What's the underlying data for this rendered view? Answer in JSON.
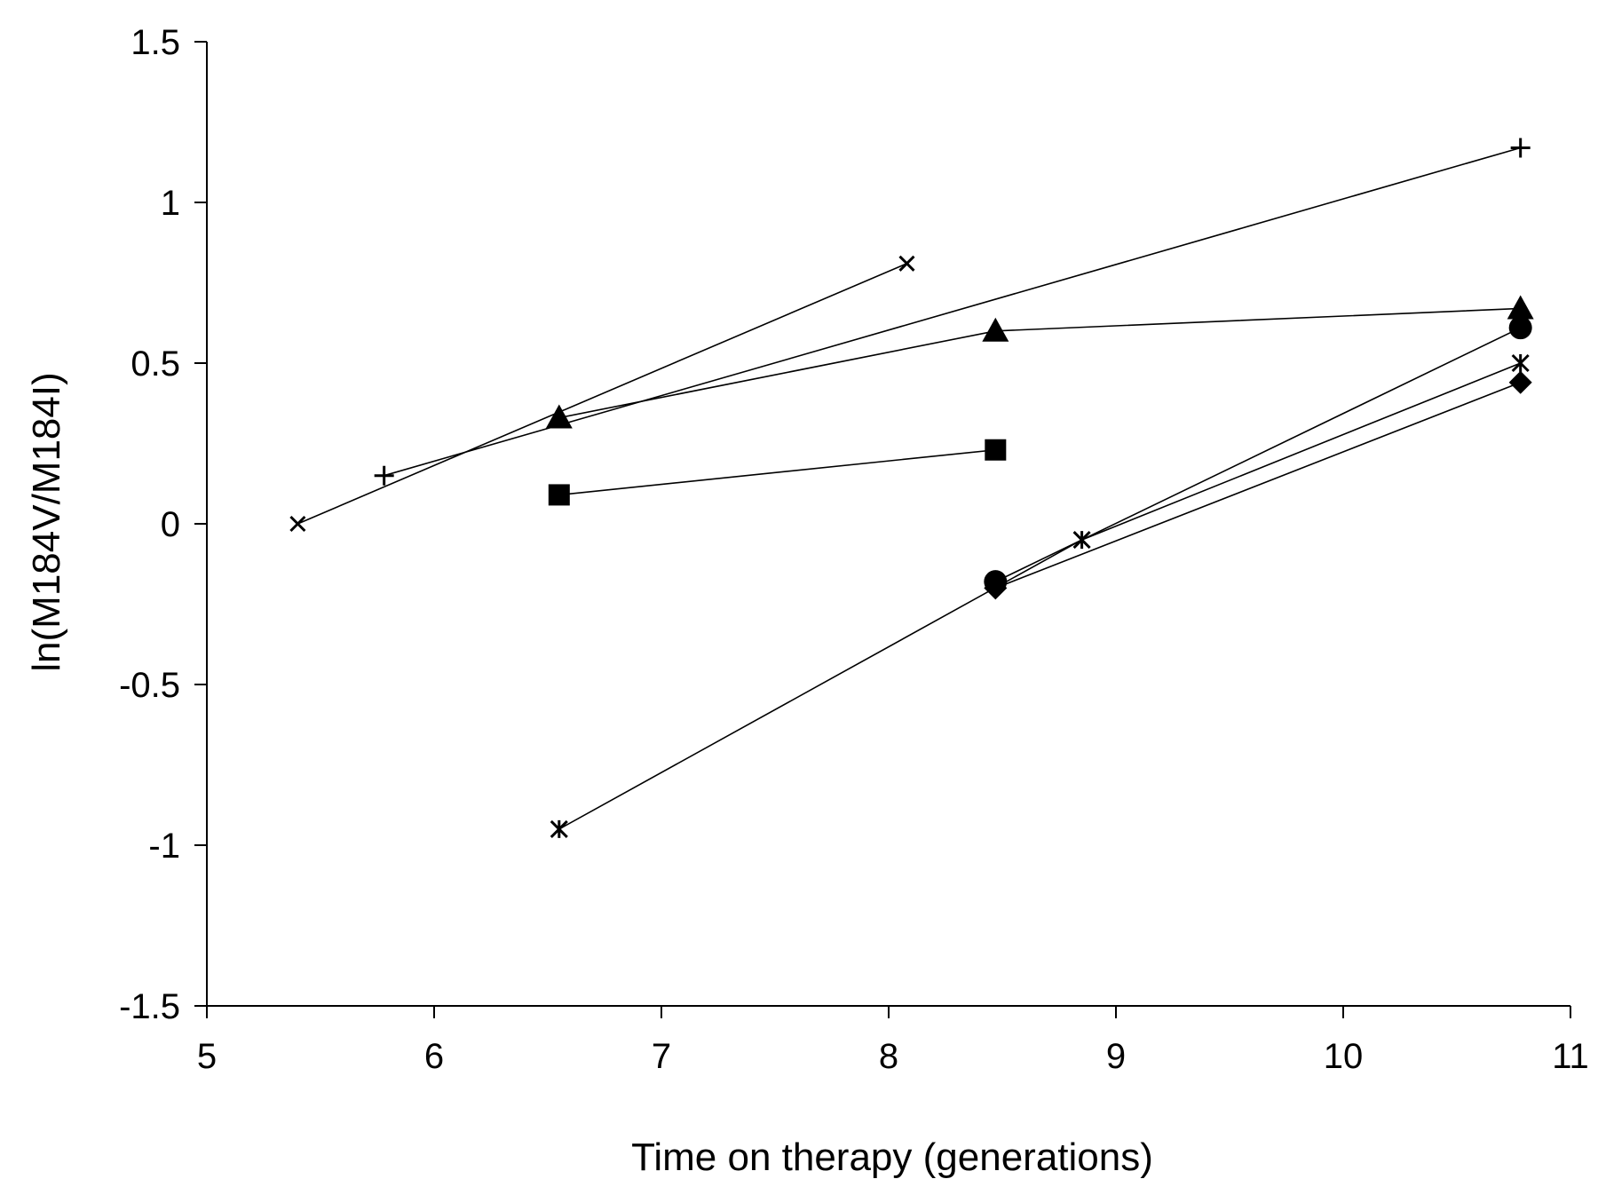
{
  "chart_data": {
    "type": "line",
    "title": "",
    "xlabel": "Time on therapy (generations)",
    "ylabel": "ln(M184V/M184I)",
    "xlim": [
      5,
      11
    ],
    "ylim": [
      -1.5,
      1.5
    ],
    "xticks": [
      5,
      6,
      7,
      8,
      9,
      10,
      11
    ],
    "yticks": [
      1.5,
      1,
      0.5,
      0,
      -0.5,
      -1,
      -1.5
    ],
    "grid": false,
    "legend": "none",
    "series": [
      {
        "marker": "x",
        "points": [
          [
            5.4,
            0.0
          ],
          [
            8.08,
            0.81
          ]
        ]
      },
      {
        "marker": "plus",
        "points": [
          [
            5.78,
            0.15
          ],
          [
            10.78,
            1.17
          ]
        ]
      },
      {
        "marker": "triangle",
        "points": [
          [
            6.55,
            0.33
          ],
          [
            8.47,
            0.6
          ],
          [
            10.78,
            0.67
          ]
        ]
      },
      {
        "marker": "square",
        "points": [
          [
            6.55,
            0.09
          ],
          [
            8.47,
            0.23
          ]
        ]
      },
      {
        "marker": "asterisk",
        "points": [
          [
            6.55,
            -0.95
          ],
          [
            8.85,
            -0.05
          ],
          [
            10.78,
            0.5
          ]
        ]
      },
      {
        "marker": "circle",
        "points": [
          [
            8.47,
            -0.18
          ],
          [
            10.78,
            0.61
          ]
        ]
      },
      {
        "marker": "diamond",
        "points": [
          [
            8.47,
            -0.2
          ],
          [
            10.78,
            0.44
          ]
        ]
      }
    ]
  }
}
